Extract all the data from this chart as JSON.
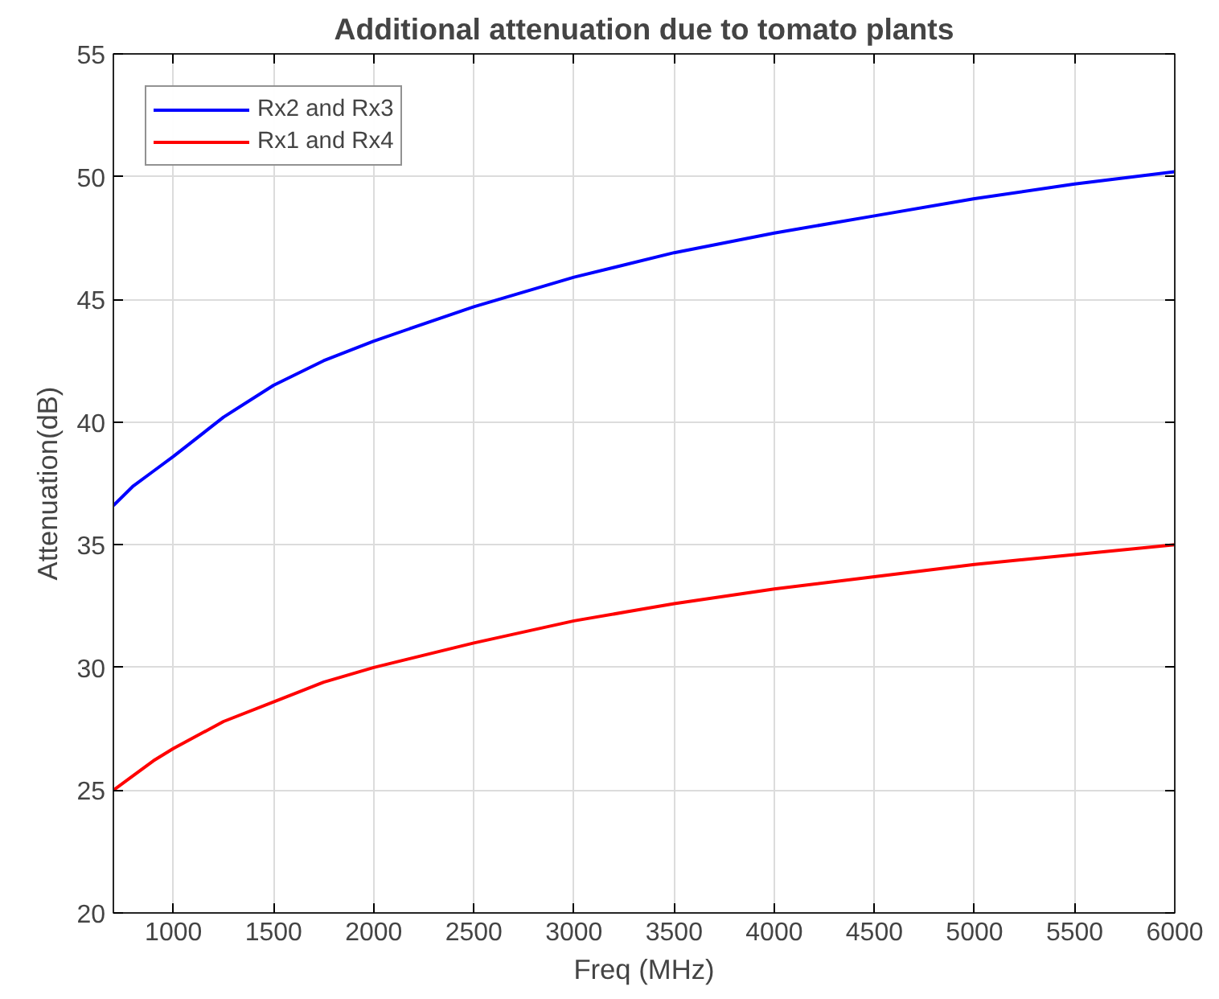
{
  "chart_data": {
    "type": "line",
    "title": "Additional attenuation due to tomato plants",
    "xlabel": "Freq (MHz)",
    "ylabel": "Attenuation(dB)",
    "x": [
      700,
      800,
      900,
      1000,
      1250,
      1500,
      1750,
      2000,
      2500,
      3000,
      3500,
      4000,
      4500,
      5000,
      5500,
      6000
    ],
    "series": [
      {
        "name": "Rx2 and Rx3",
        "color": "#0000ff",
        "values": [
          36.6,
          37.4,
          38.0,
          38.6,
          40.2,
          41.5,
          42.5,
          43.3,
          44.7,
          45.9,
          46.9,
          47.7,
          48.4,
          49.1,
          49.7,
          50.2
        ]
      },
      {
        "name": "Rx1 and Rx4",
        "color": "#ff0000",
        "values": [
          25.0,
          25.6,
          26.2,
          26.7,
          27.8,
          28.6,
          29.4,
          30.0,
          31.0,
          31.9,
          32.6,
          33.2,
          33.7,
          34.2,
          34.6,
          35.0
        ]
      }
    ],
    "xlim": [
      700,
      6000
    ],
    "ylim": [
      20,
      55
    ],
    "xticks": [
      1000,
      1500,
      2000,
      2500,
      3000,
      3500,
      4000,
      4500,
      5000,
      5500,
      6000
    ],
    "yticks": [
      20,
      25,
      30,
      35,
      40,
      45,
      50,
      55
    ],
    "grid": true,
    "legend": "top left",
    "marker": "none",
    "line_style": "solid"
  }
}
